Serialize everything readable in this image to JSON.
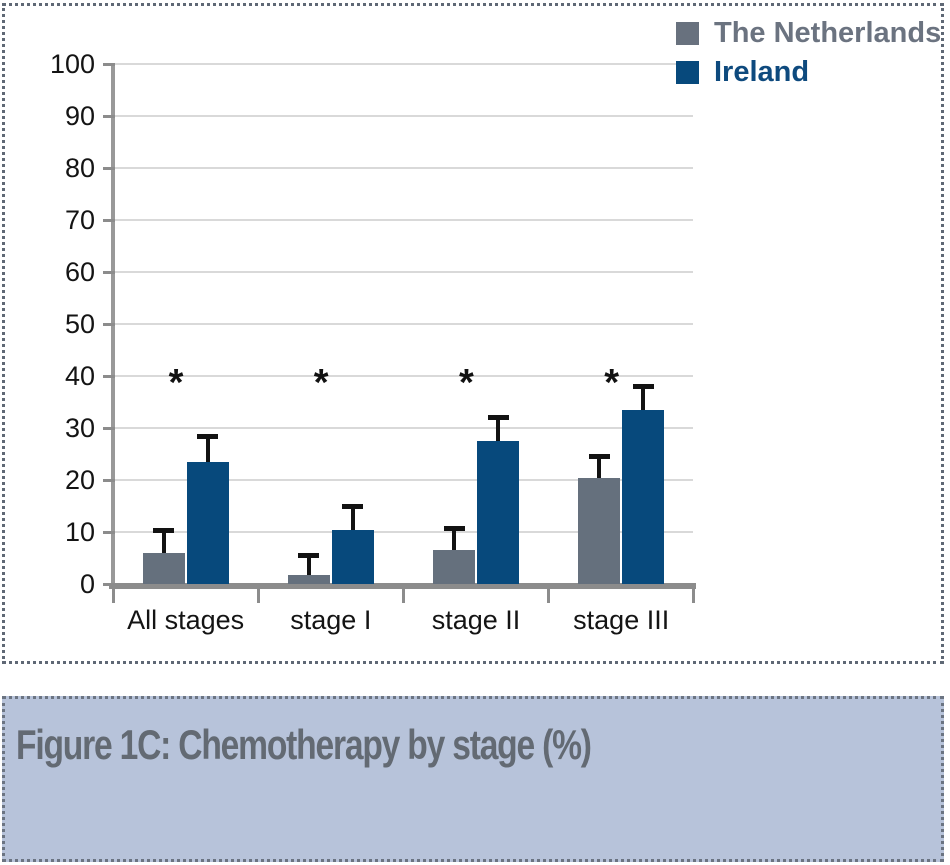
{
  "figure": {
    "caption": "Figure 1C: Chemotherapy by stage (%)"
  },
  "chart_data": {
    "type": "bar",
    "title": "",
    "xlabel": "",
    "ylabel": "",
    "categories": [
      "All stages",
      "stage I",
      "stage II",
      "stage III"
    ],
    "series": [
      {
        "name": "The Netherlands",
        "color": "#65707d",
        "values": [
          6.0,
          1.8,
          6.6,
          20.4
        ],
        "error_tops": [
          10.3,
          5.6,
          10.7,
          24.7
        ]
      },
      {
        "name": "Ireland",
        "color": "#07497c",
        "values": [
          23.5,
          10.3,
          27.5,
          33.4
        ],
        "error_tops": [
          28.5,
          15.0,
          32.2,
          38.0
        ]
      }
    ],
    "significance_markers": [
      "*",
      "*",
      "*",
      "*"
    ],
    "ylim": [
      0,
      100
    ],
    "ytick_step": 10,
    "grid": true,
    "legend_position": "top-right",
    "colors": {
      "gridline": "#d9d9d9",
      "axis": "#8c8c8c",
      "error_bar": "#121212",
      "dotted_border": "#5f6875",
      "caption_background": "#b7c3da",
      "caption_text": "#636a73",
      "legend_netherlands_text": "#6b7380",
      "legend_ireland_text": "#0e4a7e"
    }
  }
}
